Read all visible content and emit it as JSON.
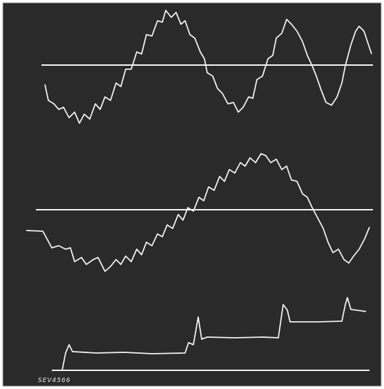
{
  "caption": "SEV4566"
}
